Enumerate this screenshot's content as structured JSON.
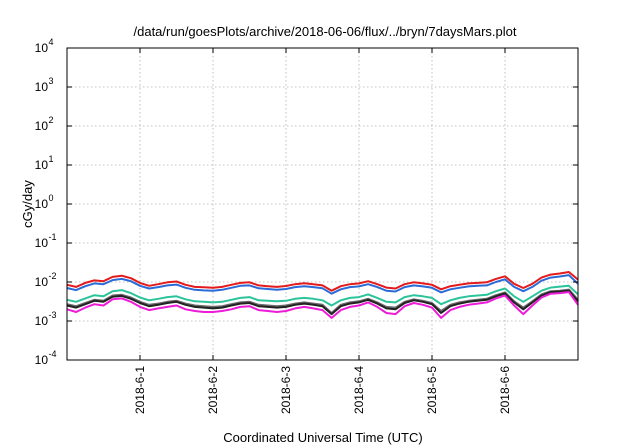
{
  "chart_data": {
    "type": "line",
    "title": "/data/run/goesPlots/archive/2018-06-06/flux/../bryn/7daysMars.plot",
    "xlabel": "Coordinated Universal Time (UTC)",
    "ylabel": "cGy/day",
    "yscale": "log",
    "ylim": [
      0.0001,
      10000
    ],
    "xlim": [
      "2018-05-31T00:00",
      "2018-06-07T00:00"
    ],
    "grid": true,
    "legend": "none",
    "yticks": [
      {
        "value": 0.0001,
        "base": "10",
        "exp": "-4"
      },
      {
        "value": 0.001,
        "base": "10",
        "exp": "-3"
      },
      {
        "value": 0.01,
        "base": "10",
        "exp": "-2"
      },
      {
        "value": 0.1,
        "base": "10",
        "exp": "-1"
      },
      {
        "value": 1,
        "base": "10",
        "exp": "0"
      },
      {
        "value": 10,
        "base": "10",
        "exp": "1"
      },
      {
        "value": 100,
        "base": "10",
        "exp": "2"
      },
      {
        "value": 1000,
        "base": "10",
        "exp": "3"
      },
      {
        "value": 10000,
        "base": "10",
        "exp": "4"
      }
    ],
    "xticks": [
      {
        "value": "2018-06-01T00:00",
        "label": "2018-6-1"
      },
      {
        "value": "2018-06-02T00:00",
        "label": "2018-6-2"
      },
      {
        "value": "2018-06-03T00:00",
        "label": "2018-6-3"
      },
      {
        "value": "2018-06-04T00:00",
        "label": "2018-6-4"
      },
      {
        "value": "2018-06-05T00:00",
        "label": "2018-6-5"
      },
      {
        "value": "2018-06-06T00:00",
        "label": "2018-6-6"
      }
    ],
    "x": [
      "2018-05-31T00:00",
      "2018-05-31T03:00",
      "2018-05-31T06:00",
      "2018-05-31T09:00",
      "2018-05-31T12:00",
      "2018-05-31T15:00",
      "2018-05-31T18:00",
      "2018-05-31T21:00",
      "2018-06-01T00:00",
      "2018-06-01T03:00",
      "2018-06-01T06:00",
      "2018-06-01T09:00",
      "2018-06-01T12:00",
      "2018-06-01T15:00",
      "2018-06-01T18:00",
      "2018-06-01T21:00",
      "2018-06-02T00:00",
      "2018-06-02T03:00",
      "2018-06-02T06:00",
      "2018-06-02T09:00",
      "2018-06-02T12:00",
      "2018-06-02T15:00",
      "2018-06-02T18:00",
      "2018-06-02T21:00",
      "2018-06-03T00:00",
      "2018-06-03T03:00",
      "2018-06-03T06:00",
      "2018-06-03T09:00",
      "2018-06-03T12:00",
      "2018-06-03T15:00",
      "2018-06-03T18:00",
      "2018-06-03T21:00",
      "2018-06-04T00:00",
      "2018-06-04T03:00",
      "2018-06-04T06:00",
      "2018-06-04T09:00",
      "2018-06-04T12:00",
      "2018-06-04T15:00",
      "2018-06-04T18:00",
      "2018-06-04T21:00",
      "2018-06-05T00:00",
      "2018-06-05T03:00",
      "2018-06-05T06:00",
      "2018-06-05T09:00",
      "2018-06-05T12:00",
      "2018-06-05T15:00",
      "2018-06-05T18:00",
      "2018-06-05T21:00",
      "2018-06-06T00:00",
      "2018-06-06T03:00",
      "2018-06-06T06:00",
      "2018-06-06T09:00",
      "2018-06-06T12:00",
      "2018-06-06T15:00",
      "2018-06-06T18:00",
      "2018-06-06T21:00",
      "2018-06-07T00:00"
    ],
    "series": [
      {
        "color": "#e41a1c",
        "values": [
          0.0085,
          0.0075,
          0.0095,
          0.011,
          0.0105,
          0.0135,
          0.0145,
          0.0125,
          0.0095,
          0.008,
          0.0088,
          0.0098,
          0.0103,
          0.0085,
          0.0075,
          0.0073,
          0.0071,
          0.0075,
          0.0085,
          0.0095,
          0.0098,
          0.0082,
          0.0078,
          0.0075,
          0.0079,
          0.0088,
          0.0093,
          0.0088,
          0.0082,
          0.006,
          0.0078,
          0.0088,
          0.0092,
          0.0105,
          0.0088,
          0.0072,
          0.0068,
          0.0088,
          0.0098,
          0.0092,
          0.0085,
          0.0065,
          0.0078,
          0.0085,
          0.0092,
          0.0095,
          0.0098,
          0.012,
          0.014,
          0.009,
          0.007,
          0.009,
          0.013,
          0.0155,
          0.0165,
          0.018,
          0.0115
        ]
      },
      {
        "color": "#2b6bd8",
        "values": [
          0.007,
          0.0062,
          0.0078,
          0.0092,
          0.0088,
          0.0112,
          0.012,
          0.0105,
          0.008,
          0.0068,
          0.0074,
          0.0082,
          0.0086,
          0.0071,
          0.0063,
          0.0061,
          0.006,
          0.0063,
          0.0071,
          0.008,
          0.0082,
          0.0069,
          0.0066,
          0.0063,
          0.0066,
          0.0074,
          0.0078,
          0.0074,
          0.0069,
          0.005,
          0.0065,
          0.0074,
          0.0077,
          0.0088,
          0.0074,
          0.006,
          0.0057,
          0.0074,
          0.0082,
          0.0077,
          0.0071,
          0.0054,
          0.0065,
          0.0071,
          0.0077,
          0.008,
          0.0082,
          0.01,
          0.0117,
          0.0075,
          0.0058,
          0.0075,
          0.0108,
          0.013,
          0.0138,
          0.015,
          0.009
        ]
      },
      {
        "color": "#2bc49a",
        "values": [
          0.0035,
          0.0031,
          0.0038,
          0.0046,
          0.0043,
          0.0058,
          0.0062,
          0.0052,
          0.004,
          0.0034,
          0.0037,
          0.0041,
          0.0043,
          0.0036,
          0.0032,
          0.0031,
          0.003,
          0.0031,
          0.0035,
          0.0039,
          0.0041,
          0.0034,
          0.0033,
          0.0032,
          0.0033,
          0.0037,
          0.0039,
          0.0037,
          0.0034,
          0.0025,
          0.0034,
          0.0039,
          0.0041,
          0.0048,
          0.0039,
          0.0031,
          0.003,
          0.0041,
          0.0046,
          0.0043,
          0.0039,
          0.0027,
          0.0034,
          0.0039,
          0.0043,
          0.0045,
          0.0047,
          0.0058,
          0.0068,
          0.0043,
          0.0031,
          0.0043,
          0.006,
          0.0072,
          0.0076,
          0.008,
          0.0048
        ]
      },
      {
        "color": "#6a6a6a",
        "values": [
          0.0027,
          0.0024,
          0.0029,
          0.0035,
          0.0033,
          0.0045,
          0.0047,
          0.004,
          0.0031,
          0.0026,
          0.0028,
          0.0031,
          0.0033,
          0.0028,
          0.0025,
          0.0024,
          0.0023,
          0.0024,
          0.0027,
          0.003,
          0.0031,
          0.0026,
          0.0025,
          0.0024,
          0.0025,
          0.0028,
          0.003,
          0.0028,
          0.0026,
          0.0016,
          0.0026,
          0.003,
          0.0032,
          0.0037,
          0.003,
          0.0023,
          0.0022,
          0.0031,
          0.0036,
          0.0033,
          0.0029,
          0.0018,
          0.0026,
          0.003,
          0.0033,
          0.0035,
          0.0037,
          0.0046,
          0.0054,
          0.0032,
          0.0022,
          0.0032,
          0.0048,
          0.0058,
          0.006,
          0.0064,
          0.0035
        ]
      },
      {
        "color": "#222222",
        "values": [
          0.0025,
          0.0022,
          0.0027,
          0.0033,
          0.0031,
          0.0042,
          0.0044,
          0.0037,
          0.0029,
          0.0024,
          0.0026,
          0.0029,
          0.0031,
          0.0026,
          0.0023,
          0.0022,
          0.0021,
          0.0022,
          0.0025,
          0.0028,
          0.0029,
          0.0024,
          0.0023,
          0.0022,
          0.0023,
          0.0026,
          0.0028,
          0.0026,
          0.0024,
          0.0015,
          0.0024,
          0.0028,
          0.003,
          0.0035,
          0.0028,
          0.0021,
          0.002,
          0.0029,
          0.0034,
          0.0031,
          0.0027,
          0.0016,
          0.0024,
          0.0028,
          0.0031,
          0.0033,
          0.0035,
          0.0043,
          0.0051,
          0.003,
          0.002,
          0.003,
          0.0045,
          0.0055,
          0.0057,
          0.006,
          0.0032
        ]
      },
      {
        "color": "#ee1bd8",
        "values": [
          0.002,
          0.0017,
          0.0022,
          0.0027,
          0.0025,
          0.0036,
          0.0038,
          0.0031,
          0.0023,
          0.0019,
          0.0021,
          0.0023,
          0.0025,
          0.002,
          0.0018,
          0.0017,
          0.0017,
          0.0018,
          0.002,
          0.0023,
          0.0024,
          0.0019,
          0.0018,
          0.0017,
          0.0018,
          0.0021,
          0.0023,
          0.0021,
          0.0019,
          0.0012,
          0.0019,
          0.0023,
          0.0025,
          0.003,
          0.0023,
          0.0016,
          0.0015,
          0.0024,
          0.0029,
          0.0026,
          0.0022,
          0.0012,
          0.0019,
          0.0023,
          0.0026,
          0.0028,
          0.003,
          0.0038,
          0.0045,
          0.0025,
          0.0015,
          0.0025,
          0.004,
          0.005,
          0.0052,
          0.0055,
          0.0026
        ]
      }
    ]
  }
}
